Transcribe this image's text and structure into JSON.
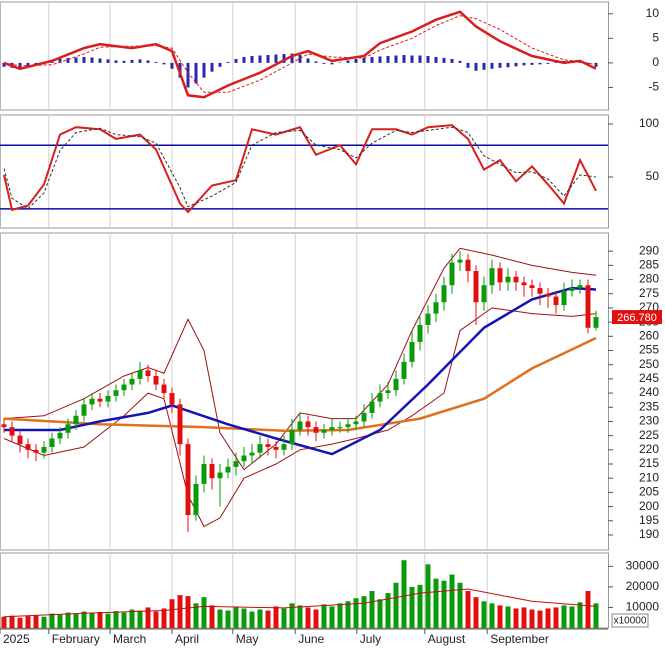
{
  "days": [
    0,
    1,
    2,
    3,
    4,
    5,
    6,
    7,
    8,
    9,
    10,
    11,
    12,
    13,
    14,
    15,
    16,
    17,
    18,
    19,
    20,
    21,
    22,
    23,
    24,
    25,
    26,
    27,
    28,
    29,
    30,
    31,
    32,
    33,
    34,
    35,
    36,
    37,
    38,
    39,
    40,
    41,
    42,
    43,
    44,
    45,
    46,
    47,
    48,
    49,
    50,
    51,
    52,
    53,
    54,
    55,
    56,
    57,
    58,
    59,
    60,
    61,
    62,
    63,
    64,
    65,
    66,
    67,
    68,
    69,
    70,
    71,
    72,
    73,
    74
  ],
  "xaxis": {
    "xlim": [
      -0.5,
      75.5
    ],
    "xticks": [
      {
        "value": -0.5,
        "label": "2025"
      },
      {
        "value": 5.6,
        "label": "February"
      },
      {
        "value": 13.25,
        "label": "March"
      },
      {
        "value": 21,
        "label": "April"
      },
      {
        "value": 28.6,
        "label": "May"
      },
      {
        "value": 36.4,
        "label": "June"
      },
      {
        "value": 44.1,
        "label": "July"
      },
      {
        "value": 52.6,
        "label": "August"
      },
      {
        "value": 60.4,
        "label": "September"
      }
    ]
  },
  "chart_data": [
    {
      "type": "macd",
      "ylim": [
        -9.6,
        12.4
      ],
      "yticks": [
        10,
        5,
        0,
        -5
      ],
      "histogram": {
        "color": "#2a2aa8",
        "values": [
          -0.8,
          -1,
          -1.1,
          -0.9,
          -0.5,
          -0.2,
          0.4,
          0.8,
          1,
          1.1,
          1.2,
          1.1,
          0.9,
          0.7,
          0.5,
          0.4,
          0.6,
          0.7,
          0.5,
          0.2,
          -0.3,
          -1.2,
          -3,
          -5,
          -4.2,
          -3,
          -1.8,
          -0.8,
          0.2,
          0.8,
          1.2,
          1.4,
          1.5,
          1.6,
          1.7,
          1.8,
          1.9,
          1.6,
          0.9,
          0.3,
          -0.2,
          -0.3,
          0.1,
          0.5,
          0.8,
          1,
          1.2,
          1.3,
          1.4,
          1.5,
          1.6,
          1.5,
          1.5,
          1.4,
          1.2,
          1,
          0.8,
          0.4,
          -1,
          -1.6,
          -1.4,
          -1.2,
          -1,
          -0.9,
          -0.7,
          -0.5,
          -0.4,
          -0.3,
          -0.2,
          0.2,
          0.4,
          0.5,
          0.2,
          -0.4,
          -0.8
        ]
      },
      "lines": [
        {
          "color": "#d81e1e",
          "width": 2.5,
          "dash": false,
          "x": [
            0,
            2,
            6,
            10,
            12,
            16,
            19,
            21,
            23,
            25,
            28,
            32,
            36,
            38,
            41,
            45,
            47,
            51,
            54,
            57,
            59,
            62,
            66,
            70,
            72,
            74
          ],
          "values": [
            0,
            -1.2,
            0.4,
            3,
            3.8,
            3,
            3.8,
            2.4,
            -6.6,
            -7,
            -4.6,
            -2,
            1.4,
            2.4,
            0.4,
            1.4,
            4,
            6.4,
            8.8,
            10.4,
            7.4,
            4.4,
            1.4,
            0,
            0.4,
            -1.2
          ]
        },
        {
          "color": "#d81e1e",
          "width": 1,
          "dash": true,
          "x": [
            0,
            2,
            6,
            10,
            12,
            16,
            19,
            21,
            23,
            25,
            28,
            32,
            36,
            38,
            41,
            45,
            47,
            51,
            54,
            57,
            59,
            62,
            66,
            70,
            72,
            74
          ],
          "values": [
            0,
            -0.6,
            -0.4,
            1.8,
            3.2,
            3.4,
            3.5,
            3,
            -2,
            -6,
            -6,
            -3.5,
            0,
            1.8,
            1.2,
            1,
            2.6,
            5,
            7.6,
            9.6,
            9,
            6.8,
            3,
            0.6,
            0.3,
            -0.4
          ]
        }
      ]
    },
    {
      "type": "oscillator",
      "ylim": [
        1.9,
        108.5
      ],
      "yticks": [
        100,
        50
      ],
      "levels": [
        80,
        20
      ],
      "level_color": "#0a0aa8",
      "lines": [
        {
          "color": "#d81e1e",
          "width": 2,
          "dash": false,
          "x": [
            0,
            1,
            3,
            5,
            7,
            9,
            12,
            14,
            17,
            19,
            22,
            23,
            26,
            29,
            31,
            34,
            37,
            39,
            42,
            44,
            46,
            49,
            51,
            53,
            56,
            58,
            60,
            62,
            64,
            66,
            68,
            70,
            72,
            74
          ],
          "values": [
            52,
            19,
            23,
            43,
            90,
            97,
            95,
            86,
            90,
            76,
            25,
            17,
            42,
            47,
            95,
            90,
            97,
            71,
            80,
            62,
            95,
            95,
            90,
            97,
            99,
            86,
            57,
            66,
            46,
            60,
            43,
            25,
            66,
            37
          ]
        },
        {
          "color": "#333333",
          "width": 1,
          "dash": true,
          "x": [
            0,
            1,
            3,
            5,
            7,
            9,
            12,
            14,
            17,
            19,
            22,
            23,
            26,
            29,
            31,
            34,
            37,
            39,
            42,
            44,
            46,
            49,
            51,
            53,
            56,
            58,
            60,
            62,
            64,
            66,
            68,
            70,
            72,
            74
          ],
          "values": [
            58,
            30,
            20,
            35,
            75,
            92,
            96,
            90,
            88,
            82,
            40,
            22,
            32,
            45,
            80,
            92,
            94,
            80,
            76,
            68,
            82,
            94,
            92,
            94,
            97,
            92,
            70,
            62,
            54,
            55,
            48,
            32,
            52,
            50
          ]
        }
      ]
    },
    {
      "type": "candlestick",
      "ylim": [
        184.7,
        296.4
      ],
      "yticks": [
        290,
        285,
        280,
        275,
        270,
        265,
        260,
        255,
        250,
        245,
        240,
        235,
        230,
        225,
        220,
        215,
        210,
        205,
        200,
        195,
        190
      ],
      "up_color": "#0a9a0a",
      "down_color": "#e01010",
      "open": [
        229,
        228,
        225,
        222,
        220,
        219,
        221,
        224,
        226,
        229,
        232,
        236,
        238,
        237,
        239,
        241,
        243,
        245,
        248,
        246,
        243,
        240,
        236,
        222,
        197,
        208,
        215,
        210,
        212,
        214,
        216,
        218,
        219,
        222,
        221,
        220,
        222,
        227,
        230,
        228,
        226,
        227,
        228,
        228,
        229,
        230,
        233,
        237,
        240,
        241,
        245,
        251,
        258,
        264,
        268,
        272,
        278,
        286,
        287,
        283,
        272,
        278,
        284,
        279,
        281,
        279,
        278,
        277,
        275,
        274,
        271,
        276,
        277,
        278,
        263
      ],
      "high": [
        231,
        230,
        227,
        224,
        222,
        223,
        226,
        228,
        231,
        234,
        238,
        240,
        240,
        241,
        243,
        245,
        247,
        251,
        250,
        248,
        245,
        242,
        238,
        224,
        211,
        218,
        217,
        215,
        217,
        219,
        221,
        222,
        225,
        224,
        223,
        225,
        231,
        233,
        232,
        230,
        229,
        231,
        230,
        231,
        232,
        236,
        240,
        243,
        244,
        248,
        254,
        262,
        267,
        271,
        275,
        281,
        289,
        290,
        289,
        285,
        281,
        287,
        286,
        284,
        283,
        281,
        280,
        279,
        277,
        276,
        279,
        280,
        280,
        280,
        269
      ],
      "low": [
        226,
        223,
        219,
        217,
        216,
        217,
        219,
        222,
        224,
        227,
        230,
        234,
        235,
        235,
        237,
        239,
        241,
        243,
        244,
        241,
        238,
        233,
        218,
        191,
        195,
        205,
        206,
        200,
        210,
        211,
        214,
        215,
        217,
        218,
        217,
        218,
        220,
        225,
        225,
        223,
        224,
        225,
        226,
        226,
        227,
        228,
        231,
        235,
        238,
        239,
        243,
        249,
        255,
        261,
        265,
        269,
        275,
        283,
        279,
        264,
        269,
        275,
        276,
        276,
        276,
        274,
        274,
        271,
        270,
        268,
        269,
        274,
        275,
        261,
        262
      ],
      "close": [
        228,
        225,
        222,
        220,
        219,
        221,
        224,
        226,
        229,
        232,
        236,
        238,
        237,
        239,
        241,
        243,
        245,
        248,
        246,
        243,
        240,
        236,
        222,
        197,
        208,
        215,
        210,
        212,
        214,
        216,
        218,
        219,
        222,
        221,
        220,
        222,
        227,
        230,
        228,
        226,
        227,
        228,
        228,
        229,
        230,
        233,
        237,
        240,
        241,
        245,
        251,
        258,
        264,
        268,
        272,
        278,
        286,
        287,
        283,
        272,
        278,
        284,
        279,
        281,
        279,
        278,
        277,
        275,
        274,
        271,
        276,
        277,
        278,
        263,
        266.78
      ],
      "last": {
        "value": 266.78,
        "label": "266.780"
      },
      "lines": [
        {
          "color": "#a01010",
          "width": 1,
          "dash": false,
          "x": [
            0,
            5,
            10,
            15,
            18,
            20,
            23,
            25,
            27,
            30,
            34,
            37,
            41,
            44,
            48,
            51,
            55,
            57,
            61,
            66,
            71,
            74
          ],
          "values": [
            231,
            232,
            238,
            246,
            249,
            247,
            266,
            255,
            226,
            213,
            222,
            233,
            231,
            231,
            243,
            262,
            284,
            291,
            288.6,
            285,
            282.5,
            281.5
          ]
        },
        {
          "color": "#a01010",
          "width": 1,
          "dash": false,
          "x": [
            0,
            5,
            10,
            15,
            18,
            20,
            23,
            25,
            27,
            30,
            34,
            37,
            41,
            44,
            48,
            51,
            55,
            57,
            61,
            66,
            71,
            74
          ],
          "values": [
            224,
            218,
            221,
            232,
            240,
            238,
            204,
            193,
            196,
            210,
            215,
            220,
            222,
            224,
            227,
            232,
            240,
            262,
            270,
            268,
            267,
            268
          ]
        },
        {
          "color": "#e07020",
          "width": 2.5,
          "dash": false,
          "x": [
            0,
            12,
            25,
            35,
            43,
            52,
            60,
            66,
            70,
            74
          ],
          "values": [
            231,
            229,
            228,
            226.7,
            227,
            231,
            238,
            248.7,
            254,
            259.4
          ]
        },
        {
          "color": "#1414b4",
          "width": 2.5,
          "dash": false,
          "x": [
            0,
            7,
            12,
            18,
            21,
            28,
            34,
            41,
            47,
            53,
            60,
            66,
            71,
            74
          ],
          "values": [
            227,
            227,
            230,
            233,
            235.6,
            229,
            224,
            218.5,
            227,
            243,
            263,
            273,
            277,
            276.5
          ]
        }
      ]
    },
    {
      "type": "volume",
      "ylim": [
        0,
        36500
      ],
      "yticks": [
        30000,
        20000,
        10000
      ],
      "unit_label": "x10000",
      "values": [
        5500,
        6000,
        5000,
        5800,
        6200,
        5500,
        7000,
        6500,
        7500,
        7000,
        8000,
        7200,
        7800,
        7000,
        8200,
        7500,
        9000,
        8500,
        10000,
        8000,
        9500,
        14000,
        16000,
        15500,
        12000,
        15000,
        11000,
        9000,
        8500,
        10000,
        9500,
        8000,
        9000,
        8500,
        10500,
        9500,
        12000,
        11000,
        10000,
        9000,
        11500,
        10500,
        12000,
        13000,
        14500,
        15500,
        18000,
        14000,
        17000,
        22000,
        33000,
        20000,
        21000,
        31000,
        24000,
        23000,
        26000,
        22000,
        18000,
        15000,
        13000,
        12000,
        11000,
        10500,
        9500,
        10000,
        9000,
        8500,
        9500,
        10000,
        11000,
        10500,
        12500,
        18000,
        12000
      ],
      "lines": [
        {
          "color": "#c01010",
          "width": 1,
          "dash": false,
          "x": [
            0,
            10,
            20,
            25,
            35,
            45,
            52,
            58,
            66,
            74
          ],
          "values": [
            5500,
            7200,
            8500,
            10500,
            9800,
            12000,
            17000,
            19000,
            13000,
            10500
          ]
        }
      ]
    }
  ]
}
